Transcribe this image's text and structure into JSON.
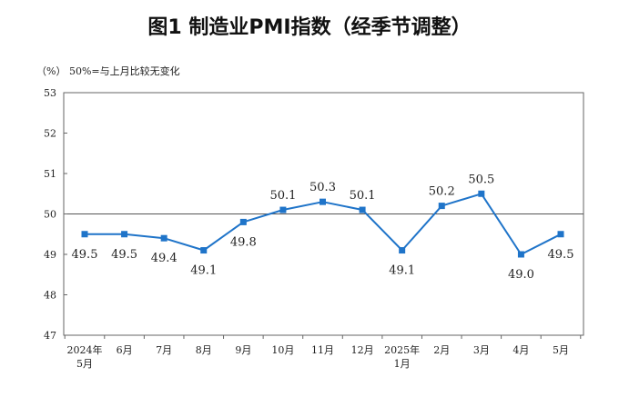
{
  "chart_data": {
    "type": "line",
    "title": "图1  制造业PMI指数（经季节调整）",
    "unit_note": "（%） 50%=与上月比较无变化",
    "categories": [
      [
        "2024年",
        "5月"
      ],
      [
        "6月"
      ],
      [
        "7月"
      ],
      [
        "8月"
      ],
      [
        "9月"
      ],
      [
        "10月"
      ],
      [
        "11月"
      ],
      [
        "12月"
      ],
      [
        "2025年",
        "1月"
      ],
      [
        "2月"
      ],
      [
        "3月"
      ],
      [
        "4月"
      ],
      [
        "5月"
      ]
    ],
    "series": [
      {
        "values": [
          49.5,
          49.5,
          49.4,
          49.1,
          49.8,
          50.1,
          50.3,
          50.1,
          49.1,
          50.2,
          50.5,
          49.0,
          49.5
        ]
      }
    ],
    "data_labels": [
      "49.5",
      "49.5",
      "49.4",
      "49.1",
      "49.8",
      "50.1",
      "50.3",
      "50.1",
      "49.1",
      "50.2",
      "50.5",
      "49.0",
      "49.5"
    ],
    "label_position": [
      "below",
      "below",
      "below",
      "below",
      "below",
      "above",
      "above",
      "above",
      "below",
      "above",
      "above",
      "below",
      "below"
    ],
    "ylim": [
      47,
      53
    ],
    "yticks": [
      "47",
      "48",
      "49",
      "50",
      "51",
      "52",
      "53"
    ],
    "reference_line": 50,
    "colors": {
      "line": "#1f74c9",
      "marker": "#1f74c9",
      "reference": "#555555"
    },
    "grid": false
  }
}
